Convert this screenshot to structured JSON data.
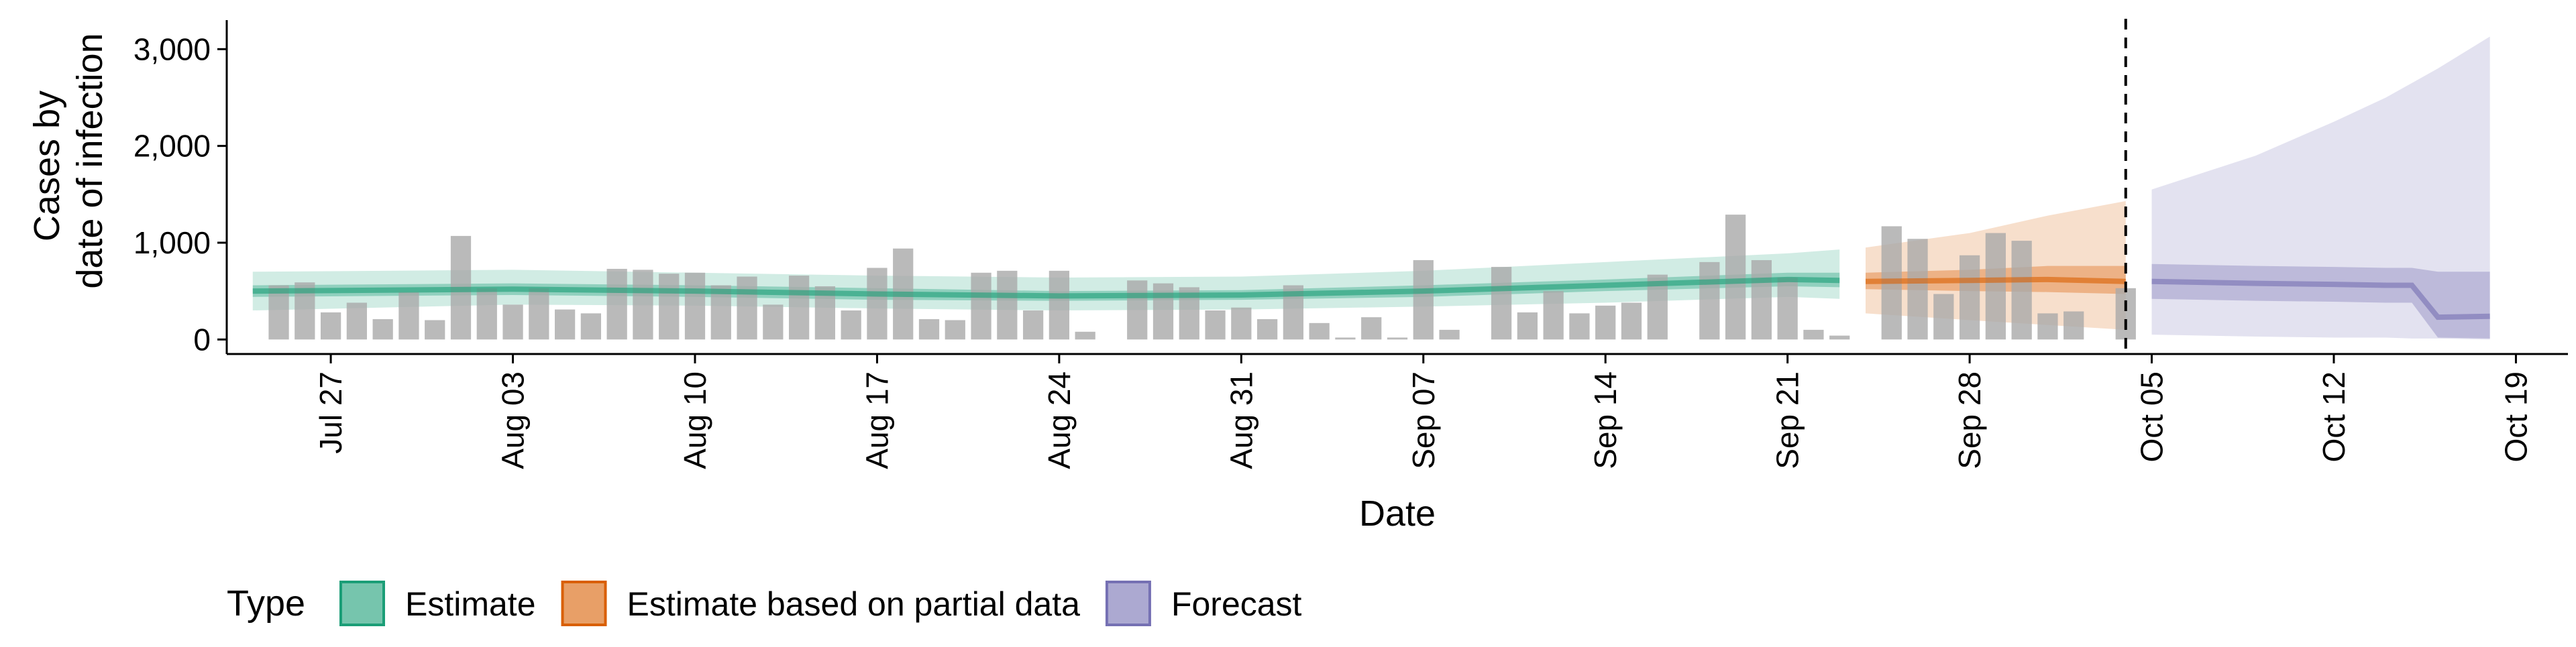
{
  "chart_data": {
    "type": "bar",
    "xlabel": "Date",
    "ylabel": [
      "Cases by",
      "date of infection"
    ],
    "ylim": [
      -150,
      3300
    ],
    "yticks": [
      0,
      1000,
      2000,
      3000
    ],
    "ytick_labels": [
      "0",
      "1,000",
      "2,000",
      "3,000"
    ],
    "x_start": "2020-07-23",
    "x_end": "2020-10-21",
    "xticks": [
      "2020-07-27",
      "2020-08-03",
      "2020-08-10",
      "2020-08-17",
      "2020-08-24",
      "2020-08-31",
      "2020-09-07",
      "2020-09-14",
      "2020-09-21",
      "2020-09-28",
      "2020-10-05",
      "2020-10-12",
      "2020-10-19"
    ],
    "xtick_labels": [
      "Jul 27",
      "Aug 03",
      "Aug 10",
      "Aug 17",
      "Aug 24",
      "Aug 31",
      "Sep 07",
      "Sep 14",
      "Sep 21",
      "Sep 28",
      "Oct 05",
      "Oct 12",
      "Oct 19"
    ],
    "vline_date": "2020-10-04",
    "bars": {
      "start_date": "2020-07-25",
      "values": [
        560,
        590,
        280,
        380,
        210,
        490,
        200,
        1070,
        530,
        360,
        530,
        310,
        270,
        730,
        720,
        680,
        690,
        560,
        650,
        360,
        660,
        550,
        300,
        740,
        940,
        210,
        200,
        690,
        710,
        300,
        710,
        80,
        0,
        610,
        580,
        540,
        300,
        330,
        210,
        560,
        170,
        20,
        230,
        20,
        820,
        100,
        0,
        750,
        280,
        500,
        270,
        350,
        380,
        670,
        0,
        800,
        1290,
        820,
        640,
        100,
        40,
        0,
        1170,
        1040,
        470,
        870,
        1100,
        1020,
        270,
        290,
        0,
        530
      ]
    },
    "legend": {
      "title": "Type",
      "position": "bottom",
      "items": [
        {
          "label": "Estimate",
          "color": "#1b9e77"
        },
        {
          "label": "Estimate based on partial data",
          "color": "#d95f02"
        },
        {
          "label": "Forecast",
          "color": "#7570b3"
        }
      ]
    },
    "series": [
      {
        "name": "Estimate",
        "color": "#1b9e77",
        "x": [
          "2020-07-24",
          "2020-08-03",
          "2020-08-10",
          "2020-08-17",
          "2020-08-24",
          "2020-08-31",
          "2020-09-07",
          "2020-09-14",
          "2020-09-21",
          "2020-09-23"
        ],
        "median": [
          500,
          520,
          500,
          470,
          450,
          460,
          500,
          560,
          620,
          610
        ],
        "inner_low": [
          440,
          460,
          440,
          410,
          400,
          410,
          440,
          500,
          550,
          540
        ],
        "inner_high": [
          560,
          580,
          560,
          530,
          500,
          510,
          560,
          620,
          690,
          690
        ],
        "outer_low": [
          300,
          360,
          350,
          320,
          300,
          310,
          340,
          380,
          440,
          420
        ],
        "outer_high": [
          700,
          720,
          690,
          660,
          640,
          650,
          710,
          800,
          890,
          930
        ]
      },
      {
        "name": "Estimate based on partial data",
        "color": "#d95f02",
        "x": [
          "2020-09-24",
          "2020-09-28",
          "2020-10-01",
          "2020-10-04"
        ],
        "median": [
          600,
          610,
          620,
          600
        ],
        "inner_low": [
          520,
          500,
          490,
          470
        ],
        "inner_high": [
          690,
          720,
          760,
          760
        ],
        "outer_low": [
          270,
          200,
          150,
          100
        ],
        "outer_high": [
          950,
          1100,
          1280,
          1430
        ]
      },
      {
        "name": "Forecast",
        "color": "#7570b3",
        "x": [
          "2020-10-05",
          "2020-10-09",
          "2020-10-12",
          "2020-10-14",
          "2020-10-15",
          "2020-10-16",
          "2020-10-18"
        ],
        "median": [
          600,
          580,
          570,
          560,
          560,
          230,
          240
        ],
        "inner_low": [
          420,
          400,
          390,
          380,
          380,
          20,
          10
        ],
        "inner_high": [
          780,
          760,
          750,
          740,
          740,
          700,
          700
        ],
        "outer_low": [
          50,
          30,
          20,
          20,
          10,
          10,
          0
        ],
        "outer_high": [
          1550,
          1900,
          2250,
          2500,
          2650,
          2800,
          3130
        ]
      }
    ]
  }
}
